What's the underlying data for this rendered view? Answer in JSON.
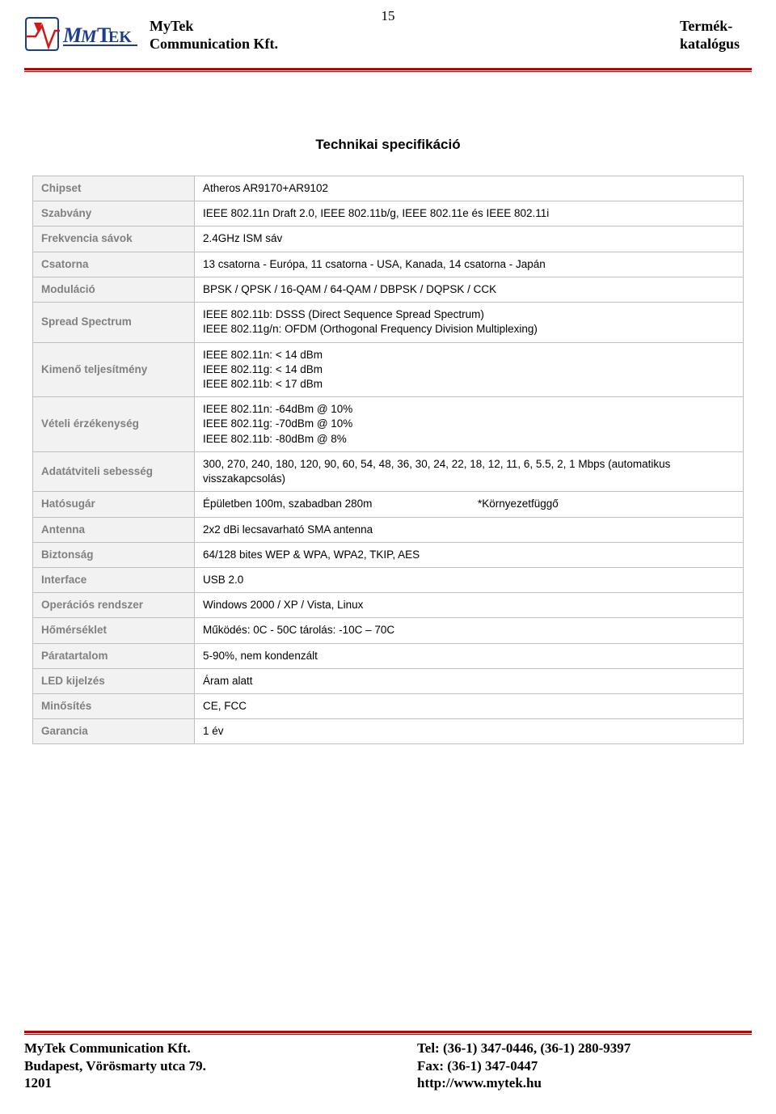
{
  "page_number": "15",
  "header": {
    "company_line1": "MyTek",
    "company_line2": "Communication Kft.",
    "right_line1": "Termék-",
    "right_line2": "katalógus",
    "rule_color": "#c00000",
    "logo_colors": {
      "text_blue": "#1a3e8c",
      "arrow_red": "#d01818"
    }
  },
  "section_title": "Technikai specifikáció",
  "table": {
    "label_bg": "#f2f2f2",
    "label_color": "#808080",
    "border_color": "#bfbfbf",
    "rows": [
      {
        "label": "Chipset",
        "value": "Atheros AR9170+AR9102"
      },
      {
        "label": "Szabvány",
        "value": "IEEE 802.11n Draft 2.0, IEEE 802.11b/g, IEEE 802.11e és IEEE 802.11i"
      },
      {
        "label": "Frekvencia sávok",
        "value": "2.4GHz ISM sáv"
      },
      {
        "label": "Csatorna",
        "value": "13 csatorna - Európa, 11 csatorna  - USA, Kanada, 14 csatorna - Japán"
      },
      {
        "label": "Moduláció",
        "value": "BPSK / QPSK / 16-QAM / 64-QAM / DBPSK / DQPSK / CCK"
      },
      {
        "label": "Spread Spectrum",
        "value": "IEEE 802.11b: DSSS (Direct Sequence Spread Spectrum)\nIEEE 802.11g/n: OFDM (Orthogonal Frequency Division Multiplexing)"
      },
      {
        "label": "Kimenő teljesítmény",
        "value": "IEEE 802.11n: < 14 dBm\nIEEE 802.11g: < 14 dBm\nIEEE 802.11b: < 17 dBm"
      },
      {
        "label": "Vételi érzékenység",
        "value": "IEEE 802.11n:  -64dBm @ 10%\nIEEE 802.11g:  -70dBm @ 10%\nIEEE 802.11b:  -80dBm @ 8%"
      },
      {
        "label": "Adatátviteli sebesség",
        "value": "300, 270, 240, 180, 120, 90, 60, 54, 48, 36, 30, 24, 22, 18, 12, 11, 6, 5.5, 2, 1 Mbps (automatikus visszakapcsolás)"
      },
      {
        "label": "Hatósugár",
        "value_left": "Épületben 100m, szabadban 280m",
        "value_right": "*Környezetfüggő"
      },
      {
        "label": "Antenna",
        "value": "2x2 dBi lecsavarható SMA antenna"
      },
      {
        "label": "Biztonság",
        "value": "64/128 bites WEP & WPA, WPA2, TKIP, AES"
      },
      {
        "label": "Interface",
        "value": "USB 2.0"
      },
      {
        "label": "Operációs rendszer",
        "value": "Windows 2000 / XP / Vista, Linux"
      },
      {
        "label": "Hőmérséklet",
        "value": "Működés: 0C - 50C   tárolás: -10C – 70C"
      },
      {
        "label": "Páratartalom",
        "value": "5-90%, nem kondenzált"
      },
      {
        "label": "LED kijelzés",
        "value": "Áram alatt"
      },
      {
        "label": "Minősítés",
        "value": "CE, FCC"
      },
      {
        "label": "Garancia",
        "value": "1 év"
      }
    ]
  },
  "footer": {
    "left_line1": "MyTek Communication Kft.",
    "left_line2": "Budapest, Vörösmarty utca 79.",
    "left_line3": "1201",
    "right_line1": "Tel:  (36-1) 347-0446, (36-1) 280-9397",
    "right_line2": "Fax: (36-1) 347-0447",
    "right_line3": "http://www.mytek.hu"
  }
}
